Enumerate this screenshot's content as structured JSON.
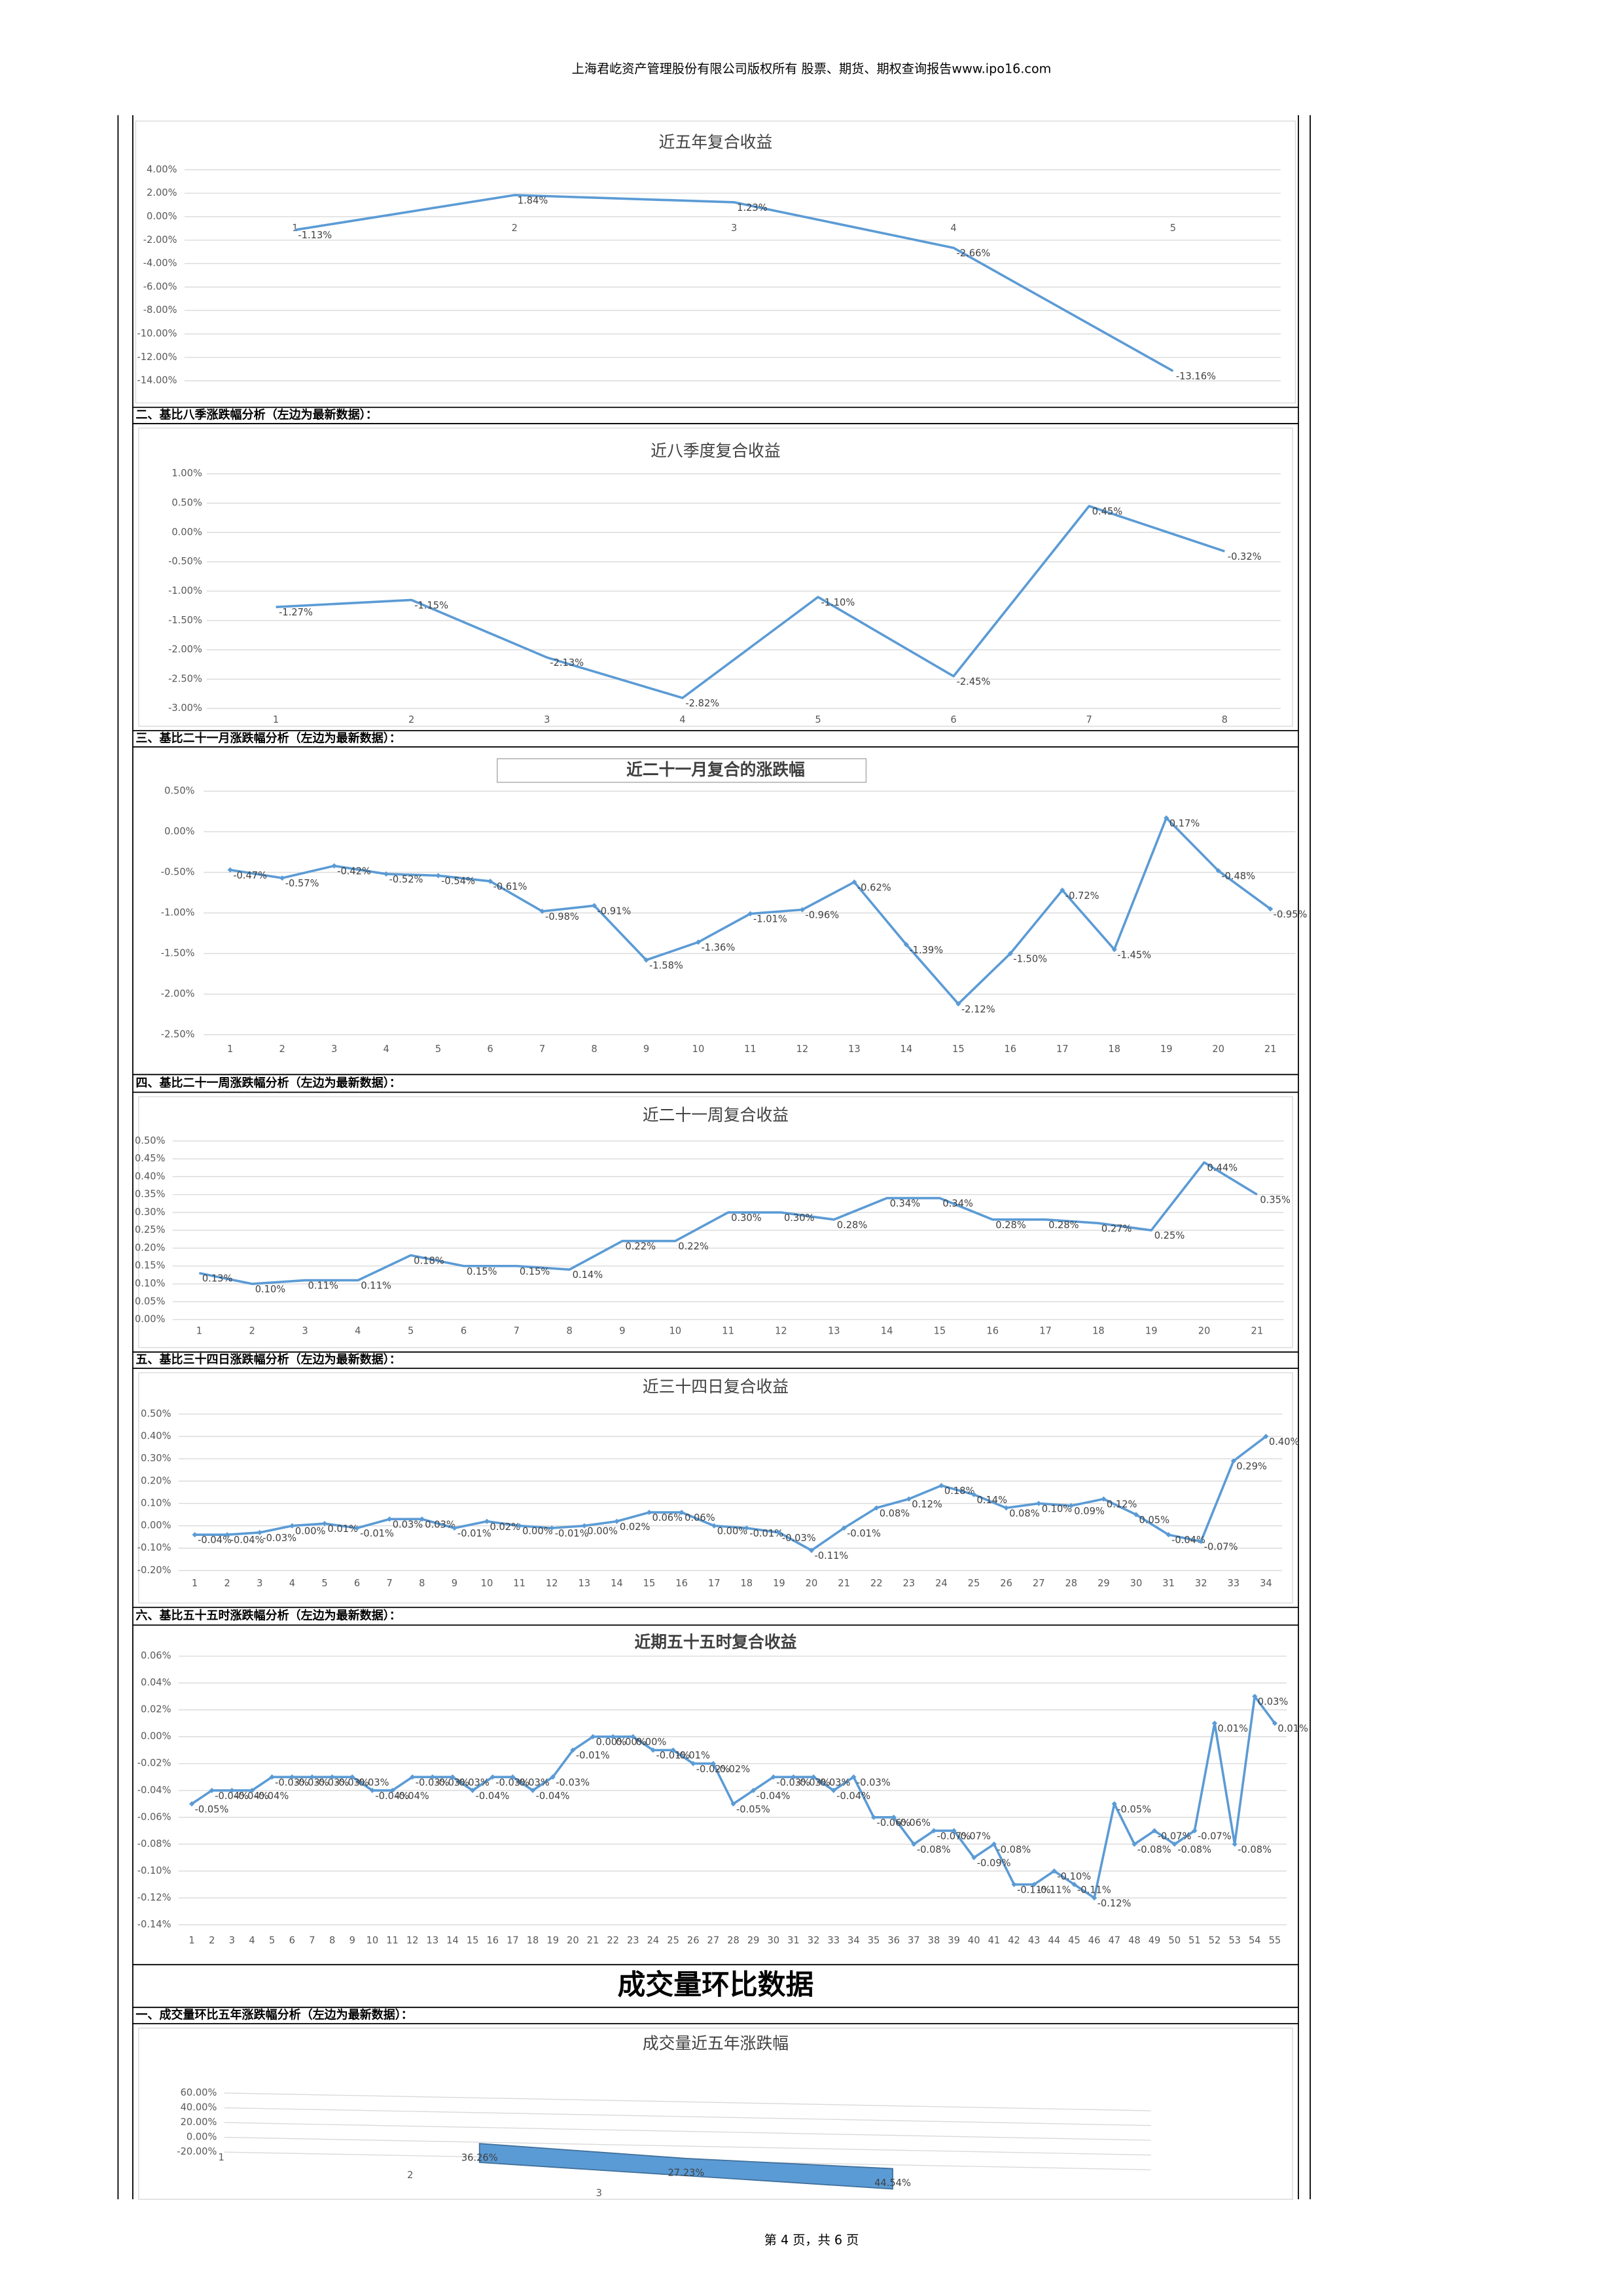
{
  "header": "上海君屹资产管理股份有限公司版权所有 股票、期货、期权查询报告www.ipo16.com",
  "footer": "第 4 页，共 6 页",
  "sections": [
    "二、基比八季涨跌幅分析（左边为最新数据）：",
    "三、基比二十一月涨跌幅分析（左边为最新数据）：",
    "四、基比二十一周涨跌幅分析（左边为最新数据）：",
    "五、基比三十四日涨跌幅分析（左边为最新数据）：",
    "六、基比五十五时涨跌幅分析（左边为最新数据）：",
    "一、成交量环比五年涨跌幅分析（左边为最新数据）："
  ],
  "heading": "成交量环比数据",
  "chart_data": [
    {
      "type": "line",
      "title": "近五年复合收益",
      "color": "#5b9bd5",
      "categories": [
        1,
        2,
        3,
        4,
        5
      ],
      "values": [
        -1.13,
        1.84,
        1.23,
        -2.66,
        -13.16
      ],
      "value_labels": [
        "-1.13%",
        "1.84%",
        "1.23%",
        "-2.66%",
        "-13.16%"
      ],
      "ylim": [
        -14,
        4
      ],
      "yticks": [
        {
          "value": 4,
          "label": "4.00%"
        },
        {
          "value": 2,
          "label": "2.00%"
        },
        {
          "value": 0,
          "label": "0.00%"
        },
        {
          "value": -2,
          "label": "-2.00%"
        },
        {
          "value": -4,
          "label": "-4.00%"
        },
        {
          "value": -6,
          "label": "-6.00%"
        },
        {
          "value": -8,
          "label": "-8.00%"
        },
        {
          "value": -10,
          "label": "-10.00%"
        },
        {
          "value": -12,
          "label": "-12.00%"
        },
        {
          "value": -14,
          "label": "-14.00%"
        }
      ],
      "grid": true
    },
    {
      "type": "line",
      "title": "近八季度复合收益",
      "color": "#5b9bd5",
      "categories": [
        1,
        2,
        3,
        4,
        5,
        6,
        7,
        8
      ],
      "values": [
        -1.27,
        -1.15,
        -2.13,
        -2.82,
        -1.1,
        -2.45,
        0.45,
        -0.32
      ],
      "value_labels": [
        "-1.27%",
        "-1.15%",
        "-2.13%",
        "-2.82%",
        "-1.10%",
        "-2.45%",
        "0.45%",
        "-0.32%"
      ],
      "ylim": [
        -3,
        1
      ],
      "yticks": [
        {
          "value": 1,
          "label": "1.00%"
        },
        {
          "value": 0.5,
          "label": "0.50%"
        },
        {
          "value": 0,
          "label": "0.00%"
        },
        {
          "value": -0.5,
          "label": "-0.50%"
        },
        {
          "value": -1,
          "label": "-1.00%"
        },
        {
          "value": -1.5,
          "label": "-1.50%"
        },
        {
          "value": -2,
          "label": "-2.00%"
        },
        {
          "value": -2.5,
          "label": "-2.50%"
        },
        {
          "value": -3,
          "label": "-3.00%"
        }
      ],
      "grid": true
    },
    {
      "type": "line",
      "title": "近二十一月复合的涨跌幅",
      "color": "#5b9bd5",
      "markers": true,
      "categories": [
        1,
        2,
        3,
        4,
        5,
        6,
        7,
        8,
        9,
        10,
        11,
        12,
        13,
        14,
        15,
        16,
        17,
        18,
        19,
        20,
        21
      ],
      "values": [
        -0.47,
        -0.57,
        -0.42,
        -0.52,
        -0.54,
        -0.61,
        -0.98,
        -0.91,
        -1.58,
        -1.36,
        -1.01,
        -0.96,
        -0.62,
        -1.39,
        -2.12,
        -1.5,
        -0.72,
        -1.45,
        0.17,
        -0.48,
        -0.95
      ],
      "value_labels": [
        "-0.47%",
        "-0.57%",
        "-0.42%",
        "-0.52%",
        "-0.54%",
        "-0.61%",
        "-0.98%",
        "-0.91%",
        "-1.58%",
        "-1.36%",
        "-1.01%",
        "-0.96%",
        "-0.62%",
        "-1.39%",
        "-2.12%",
        "-1.50%",
        "-0.72%",
        "-1.45%",
        "0.17%",
        "-0.48%",
        "-0.95%"
      ],
      "ylim": [
        -2.5,
        0.5
      ],
      "yticks": [
        {
          "value": 0.5,
          "label": "0.50%"
        },
        {
          "value": 0,
          "label": "0.00%"
        },
        {
          "value": -0.5,
          "label": "-0.50%"
        },
        {
          "value": -1,
          "label": "-1.00%"
        },
        {
          "value": -1.5,
          "label": "-1.50%"
        },
        {
          "value": -2,
          "label": "-2.00%"
        },
        {
          "value": -2.5,
          "label": "-2.50%"
        }
      ],
      "grid": true
    },
    {
      "type": "line",
      "title": "近二十一周复合收益",
      "color": "#5b9bd5",
      "categories": [
        1,
        2,
        3,
        4,
        5,
        6,
        7,
        8,
        9,
        10,
        11,
        12,
        13,
        14,
        15,
        16,
        17,
        18,
        19,
        20,
        21
      ],
      "values": [
        0.13,
        0.1,
        0.11,
        0.11,
        0.18,
        0.15,
        0.15,
        0.14,
        0.22,
        0.22,
        0.3,
        0.3,
        0.28,
        0.34,
        0.34,
        0.28,
        0.28,
        0.27,
        0.25,
        0.44,
        0.35
      ],
      "value_labels": [
        "0.13%",
        "0.10%",
        "0.11%",
        "0.11%",
        "0.18%",
        "0.15%",
        "0.15%",
        "0.14%",
        "0.22%",
        "0.22%",
        "0.30%",
        "0.30%",
        "0.28%",
        "0.34%",
        "0.34%",
        "0.28%",
        "0.28%",
        "0.27%",
        "0.25%",
        "0.44%",
        "0.35%"
      ],
      "ylim": [
        0,
        0.5
      ],
      "yticks": [
        {
          "value": 0.5,
          "label": "0.50%"
        },
        {
          "value": 0.45,
          "label": "0.45%"
        },
        {
          "value": 0.4,
          "label": "0.40%"
        },
        {
          "value": 0.35,
          "label": "0.35%"
        },
        {
          "value": 0.3,
          "label": "0.30%"
        },
        {
          "value": 0.25,
          "label": "0.25%"
        },
        {
          "value": 0.2,
          "label": "0.20%"
        },
        {
          "value": 0.15,
          "label": "0.15%"
        },
        {
          "value": 0.1,
          "label": "0.10%"
        },
        {
          "value": 0.05,
          "label": "0.05%"
        },
        {
          "value": 0,
          "label": "0.00%"
        }
      ],
      "grid": true
    },
    {
      "type": "line",
      "title": "近三十四日复合收益",
      "color": "#5b9bd5",
      "markers": true,
      "categories": [
        1,
        2,
        3,
        4,
        5,
        6,
        7,
        8,
        9,
        10,
        11,
        12,
        13,
        14,
        15,
        16,
        17,
        18,
        19,
        20,
        21,
        22,
        23,
        24,
        25,
        26,
        27,
        28,
        29,
        30,
        31,
        32,
        33,
        34
      ],
      "values": [
        -0.04,
        -0.04,
        -0.03,
        0.0,
        0.01,
        -0.01,
        0.03,
        0.03,
        -0.01,
        0.02,
        0.0,
        -0.01,
        0.0,
        0.02,
        0.06,
        0.06,
        0.0,
        -0.01,
        -0.03,
        -0.11,
        -0.01,
        0.08,
        0.12,
        0.18,
        0.14,
        0.08,
        0.1,
        0.09,
        0.12,
        0.05,
        -0.04,
        -0.07,
        0.29,
        0.4
      ],
      "value_labels": [
        "-0.04%",
        "-0.04%",
        "-0.03%",
        "0.00%",
        "0.01%",
        "-0.01%",
        "0.03%",
        "0.03%",
        "-0.01%",
        "0.02%",
        "0.00%",
        "-0.01%",
        "0.00%",
        "0.02%",
        "0.06%",
        "0.06%",
        "0.00%",
        "-0.01%",
        "-0.03%",
        "-0.11%",
        "-0.01%",
        "0.08%",
        "0.12%",
        "0.18%",
        "0.14%",
        "0.08%",
        "0.10%",
        "0.09%",
        "0.12%",
        "0.05%",
        "-0.04%",
        "-0.07%",
        "0.29%",
        "0.40%"
      ],
      "ylim": [
        -0.2,
        0.5
      ],
      "yticks": [
        {
          "value": 0.5,
          "label": "0.50%"
        },
        {
          "value": 0.4,
          "label": "0.40%"
        },
        {
          "value": 0.3,
          "label": "0.30%"
        },
        {
          "value": 0.2,
          "label": "0.20%"
        },
        {
          "value": 0.1,
          "label": "0.10%"
        },
        {
          "value": 0,
          "label": "0.00%"
        },
        {
          "value": -0.1,
          "label": "-0.10%"
        },
        {
          "value": -0.2,
          "label": "-0.20%"
        }
      ],
      "grid": true
    },
    {
      "type": "line",
      "title": "近期五十五时复合收益",
      "color": "#5b9bd5",
      "markers": true,
      "categories": [
        1,
        2,
        3,
        4,
        5,
        6,
        7,
        8,
        9,
        10,
        11,
        12,
        13,
        14,
        15,
        16,
        17,
        18,
        19,
        20,
        21,
        22,
        23,
        24,
        25,
        26,
        27,
        28,
        29,
        30,
        31,
        32,
        33,
        34,
        35,
        36,
        37,
        38,
        39,
        40,
        41,
        42,
        43,
        44,
        45,
        46,
        47,
        48,
        49,
        50,
        51,
        52,
        53,
        54,
        55
      ],
      "values": [
        -0.05,
        -0.04,
        -0.04,
        -0.04,
        -0.03,
        -0.03,
        -0.03,
        -0.03,
        -0.03,
        -0.04,
        -0.04,
        -0.03,
        -0.03,
        -0.03,
        -0.04,
        -0.03,
        -0.03,
        -0.04,
        -0.03,
        -0.01,
        0.0,
        0.0,
        0.0,
        -0.01,
        -0.01,
        -0.02,
        -0.02,
        -0.05,
        -0.04,
        -0.03,
        -0.03,
        -0.03,
        -0.04,
        -0.03,
        -0.06,
        -0.06,
        -0.08,
        -0.07,
        -0.07,
        -0.09,
        -0.08,
        -0.11,
        -0.11,
        -0.1,
        -0.11,
        -0.12,
        -0.05,
        -0.08,
        -0.07,
        -0.08,
        -0.07,
        0.01,
        -0.08,
        0.03,
        0.01
      ],
      "value_labels": [
        "-0.05%",
        "-0.04%",
        "-0.04%",
        "-0.04%",
        "-0.03%",
        "-0.03%",
        "-0.03%",
        "-0.03%",
        "-0.03%",
        "-0.04%",
        "-0.04%",
        "-0.03%",
        "-0.03%",
        "-0.03%",
        "-0.04%",
        "-0.03%",
        "-0.03%",
        "-0.04%",
        "-0.03%",
        "-0.01%",
        "0.00%",
        "0.00%",
        "0.00%",
        "-0.01%",
        "-0.01%",
        "-0.02%",
        "-0.02%",
        "-0.05%",
        "-0.04%",
        "-0.03%",
        "-0.03%",
        "-0.03%",
        "-0.04%",
        "-0.03%",
        "-0.06%",
        "-0.06%",
        "-0.08%",
        "-0.07%",
        "-0.07%",
        "-0.09%",
        "-0.08%",
        "-0.11%",
        "-0.11%",
        "-0.10%",
        "-0.11%",
        "-0.12%",
        "-0.05%",
        "-0.08%",
        "-0.07%",
        "-0.08%",
        "-0.07%",
        "0.01%",
        "-0.08%",
        "0.03%",
        "0.01%"
      ],
      "ylim": [
        -0.14,
        0.06
      ],
      "yticks": [
        {
          "value": 0.06,
          "label": "0.06%"
        },
        {
          "value": 0.04,
          "label": "0.04%"
        },
        {
          "value": 0.02,
          "label": "0.02%"
        },
        {
          "value": 0,
          "label": "0.00%"
        },
        {
          "value": -0.02,
          "label": "-0.02%"
        },
        {
          "value": -0.04,
          "label": "-0.04%"
        },
        {
          "value": -0.06,
          "label": "-0.06%"
        },
        {
          "value": -0.08,
          "label": "-0.08%"
        },
        {
          "value": -0.1,
          "label": "-0.10%"
        },
        {
          "value": -0.12,
          "label": "-0.12%"
        },
        {
          "value": -0.14,
          "label": "-0.14%"
        }
      ],
      "grid": true
    },
    {
      "type": "area3d",
      "title": "成交量近五年涨跌幅",
      "color": "#5b9bd5",
      "categories": [
        1,
        2,
        3,
        null,
        null
      ],
      "values": [
        null,
        36.26,
        27.23,
        44.54,
        null
      ],
      "value_labels": [
        null,
        "36.26%",
        "27.23%",
        "44.54%",
        null
      ],
      "ylim": [
        -20,
        60
      ],
      "yticks": [
        {
          "value": 60,
          "label": "60.00%"
        },
        {
          "value": 40,
          "label": "40.00%"
        },
        {
          "value": 20,
          "label": "20.00%"
        },
        {
          "value": 0,
          "label": "0.00%"
        },
        {
          "value": -20,
          "label": "-20.00%"
        }
      ],
      "grid": true
    }
  ]
}
